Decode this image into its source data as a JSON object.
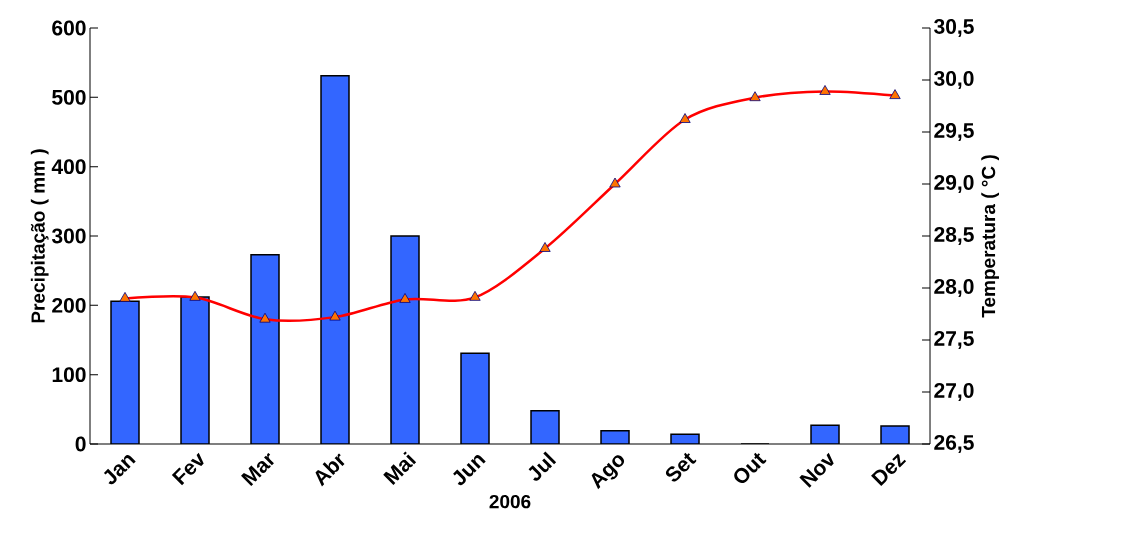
{
  "chart_data": {
    "type": "bar",
    "xlabel": "2006",
    "ylabel": "Precipitação ( mm )",
    "y2label": "Temperatura ( °C )",
    "categories": [
      "Jan",
      "Fev",
      "Mar",
      "Abr",
      "Mai",
      "Jun",
      "Jul",
      "Ago",
      "Set",
      "Out",
      "Nov",
      "Dez"
    ],
    "series": [
      {
        "color": "#3366ff",
        "values": [
          206,
          212,
          273,
          531,
          300,
          131,
          48,
          19,
          14,
          0,
          27,
          26
        ]
      },
      {
        "type": "line",
        "axis": "y2",
        "color": "#ff0000",
        "marker": "triangle",
        "values": [
          27.9,
          27.91,
          27.7,
          27.72,
          27.89,
          27.91,
          28.38,
          29.0,
          29.62,
          29.83,
          29.89,
          29.85
        ]
      }
    ],
    "ylim": [
      0,
      600
    ],
    "yticks": [
      0,
      100,
      200,
      300,
      400,
      500,
      600
    ],
    "y2lim": [
      26.5,
      30.5
    ],
    "y2ticks": [
      {
        "value": 26.5,
        "label": "26,5"
      },
      {
        "value": 27.0,
        "label": "27,0"
      },
      {
        "value": 27.5,
        "label": "27,5"
      },
      {
        "value": 28.0,
        "label": "28,0"
      },
      {
        "value": 28.5,
        "label": "28,5"
      },
      {
        "value": 29.0,
        "label": "29,0"
      },
      {
        "value": 29.5,
        "label": "29,5"
      },
      {
        "value": 30.0,
        "label": "30,0"
      },
      {
        "value": 30.5,
        "label": "30,5"
      }
    ],
    "grid": false
  }
}
